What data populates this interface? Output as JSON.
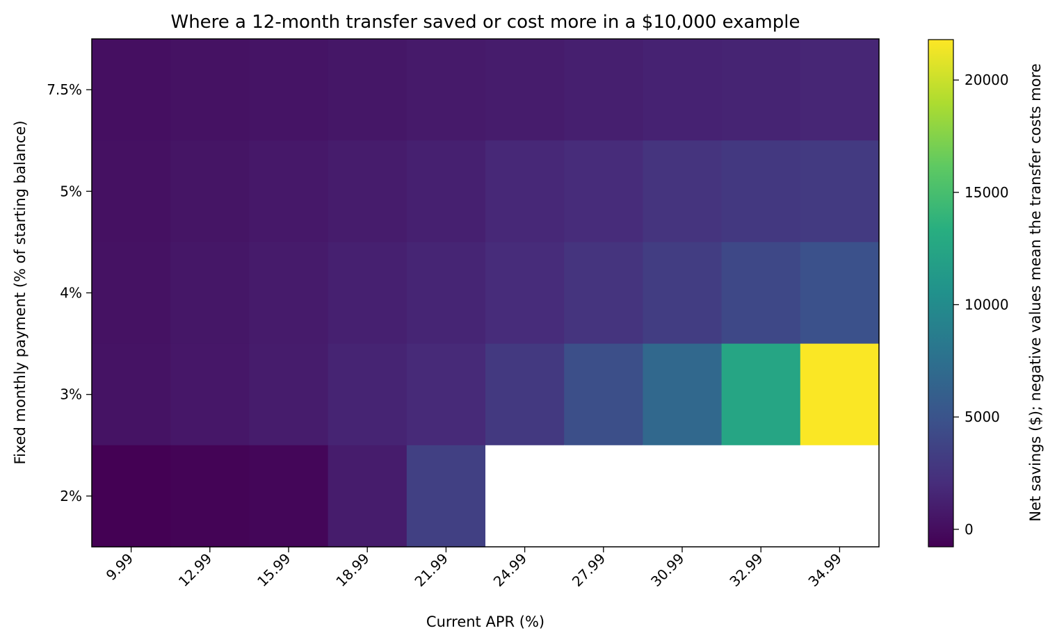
{
  "chart_data": {
    "type": "heatmap",
    "title": "Where a 12-month transfer saved or cost more in a $10,000 example",
    "xlabel": "Current APR (%)",
    "ylabel": "Fixed monthly payment (% of starting balance)",
    "x_categories": [
      "9.99",
      "12.99",
      "15.99",
      "18.99",
      "21.99",
      "24.99",
      "27.99",
      "30.99",
      "32.99",
      "34.99"
    ],
    "y_categories": [
      "7.5%",
      "5%",
      "4%",
      "3%",
      "2%"
    ],
    "values": [
      [
        150,
        300,
        450,
        620,
        800,
        980,
        1170,
        1360,
        1480,
        1610
      ],
      [
        250,
        480,
        720,
        960,
        1220,
        1740,
        2000,
        2600,
        2870,
        3050
      ],
      [
        320,
        620,
        900,
        1220,
        1550,
        2000,
        2600,
        3300,
        4100,
        4800
      ],
      [
        370,
        650,
        950,
        1450,
        1850,
        2950,
        4600,
        6800,
        12500,
        21700
      ],
      [
        -780,
        -600,
        -450,
        950,
        3520,
        null,
        null,
        null,
        null,
        null
      ]
    ],
    "value_range": [
      -780,
      21800
    ],
    "colormap": "viridis",
    "missing_color": "#ffffff",
    "colorbar": {
      "label": "Net savings ($); negative values mean the transfer costs more",
      "ticks": [
        0,
        5000,
        10000,
        15000,
        20000
      ],
      "tick_labels": [
        "0",
        "5000",
        "10000",
        "15000",
        "20000"
      ],
      "placement": "right"
    },
    "grid": false
  }
}
